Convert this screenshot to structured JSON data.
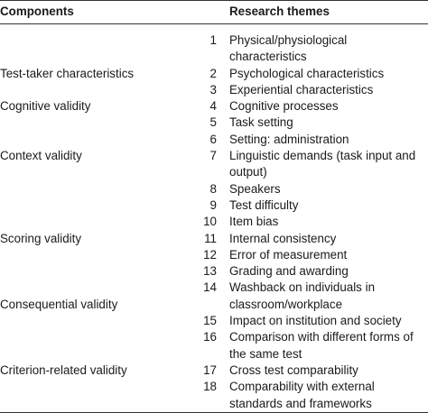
{
  "table": {
    "header": [
      "Components",
      "Research themes"
    ],
    "rows": [
      {
        "num": 1,
        "theme": "Physical/physiological characteristics"
      },
      {
        "component": "Test-taker characteristics",
        "num": 2,
        "theme": "Psychological characteristics"
      },
      {
        "num": 3,
        "theme": "Experiential characteristics"
      },
      {
        "component": "Cognitive validity",
        "num": 4,
        "theme": "Cognitive processes"
      },
      {
        "num": 5,
        "theme": "Task setting"
      },
      {
        "num": 6,
        "theme": "Setting: administration"
      },
      {
        "component": "Context validity",
        "num": 7,
        "theme": "Linguistic demands (task input and output)"
      },
      {
        "num": 8,
        "theme": "Speakers"
      },
      {
        "num": 9,
        "theme": "Test difficulty"
      },
      {
        "num": 10,
        "theme": "Item bias"
      },
      {
        "component": "Scoring validity",
        "num": 11,
        "theme": "Internal consistency"
      },
      {
        "num": 12,
        "theme": "Error of measurement"
      },
      {
        "num": 13,
        "theme": "Grading and awarding"
      },
      {
        "component": "Consequential validity",
        "num": 14,
        "theme": "Washback on individuals in classroom/workplace"
      },
      {
        "num": 15,
        "theme": "Impact on institution and society"
      },
      {
        "num": 16,
        "theme": "Comparison with different forms of the same test"
      },
      {
        "component": "Criterion-related validity",
        "num": 17,
        "theme": "Cross test comparability"
      },
      {
        "num": 18,
        "theme": "Comparability with external standards and frameworks"
      }
    ]
  }
}
